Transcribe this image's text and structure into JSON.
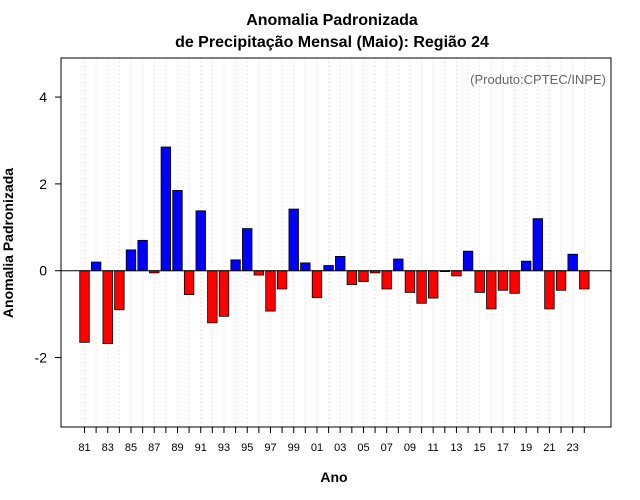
{
  "chart_data": {
    "type": "bar",
    "title": "Anomalia Padronizada",
    "subtitle": "de Precipitação Mensal (Maio): Região 24",
    "xlabel": "Ano",
    "ylabel": "Anomalia Padronizada",
    "annotation": "(Produto:CPTEC/INPE)",
    "ylim": [
      -3.6,
      4.9
    ],
    "yticks": [
      -2,
      0,
      2,
      4
    ],
    "positive_color": "#0000ff",
    "negative_color": "#ff0000",
    "grid": true,
    "categories": [
      "81",
      "82",
      "83",
      "84",
      "85",
      "86",
      "87",
      "88",
      "89",
      "90",
      "91",
      "92",
      "93",
      "94",
      "95",
      "96",
      "97",
      "98",
      "99",
      "00",
      "01",
      "02",
      "03",
      "04",
      "05",
      "06",
      "07",
      "08",
      "09",
      "10",
      "11",
      "12",
      "13",
      "14",
      "15",
      "16",
      "17",
      "18",
      "19",
      "20",
      "21",
      "22",
      "23",
      "24"
    ],
    "xtick_labels": [
      "81",
      "83",
      "85",
      "87",
      "89",
      "91",
      "93",
      "95",
      "97",
      "99",
      "01",
      "03",
      "05",
      "07",
      "09",
      "11",
      "13",
      "15",
      "17",
      "19",
      "21",
      "23"
    ],
    "values": [
      -1.65,
      0.2,
      -1.68,
      -0.9,
      0.48,
      0.7,
      -0.05,
      2.85,
      1.85,
      -0.55,
      1.38,
      -1.2,
      -1.05,
      0.25,
      0.97,
      -0.1,
      -0.93,
      -0.42,
      1.42,
      0.18,
      -0.62,
      0.12,
      0.33,
      -0.32,
      -0.25,
      -0.05,
      -0.42,
      0.27,
      -0.5,
      -0.75,
      -0.63,
      -0.02,
      -0.12,
      0.45,
      -0.5,
      -0.88,
      -0.45,
      -0.52,
      0.22,
      1.2,
      -0.88,
      -0.45,
      0.38,
      -0.42
    ]
  }
}
